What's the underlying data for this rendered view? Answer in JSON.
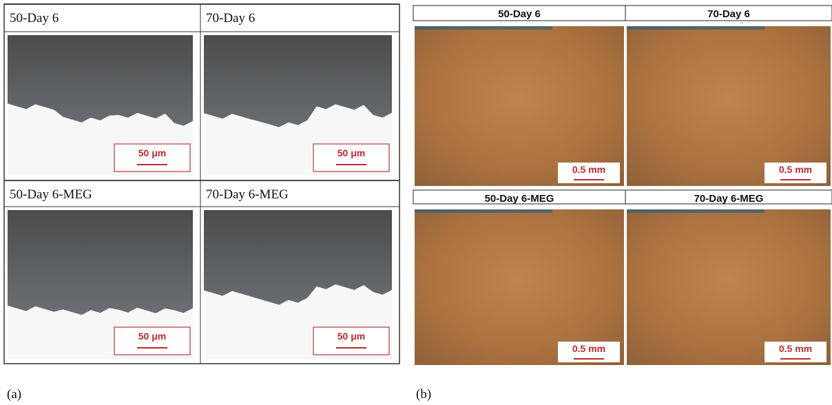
{
  "panels": [
    {
      "label": "(a)",
      "cells": [
        {
          "title": "50-Day 6",
          "scale": "50 μm"
        },
        {
          "title": "70-Day 6",
          "scale": "50 μm"
        },
        {
          "title": "50-Day  6-MEG",
          "scale": "50 μm"
        },
        {
          "title": "70-Day 6-MEG",
          "scale": "50 μm"
        }
      ]
    },
    {
      "label": "(b)",
      "cells": [
        {
          "title": "50-Day 6",
          "scale": "0.5 mm"
        },
        {
          "title": "70-Day 6",
          "scale": "0.5 mm"
        },
        {
          "title": "50-Day 6-MEG",
          "scale": "0.5 mm"
        },
        {
          "title": "70-Day 6-MEG",
          "scale": "0.5 mm"
        }
      ]
    }
  ]
}
